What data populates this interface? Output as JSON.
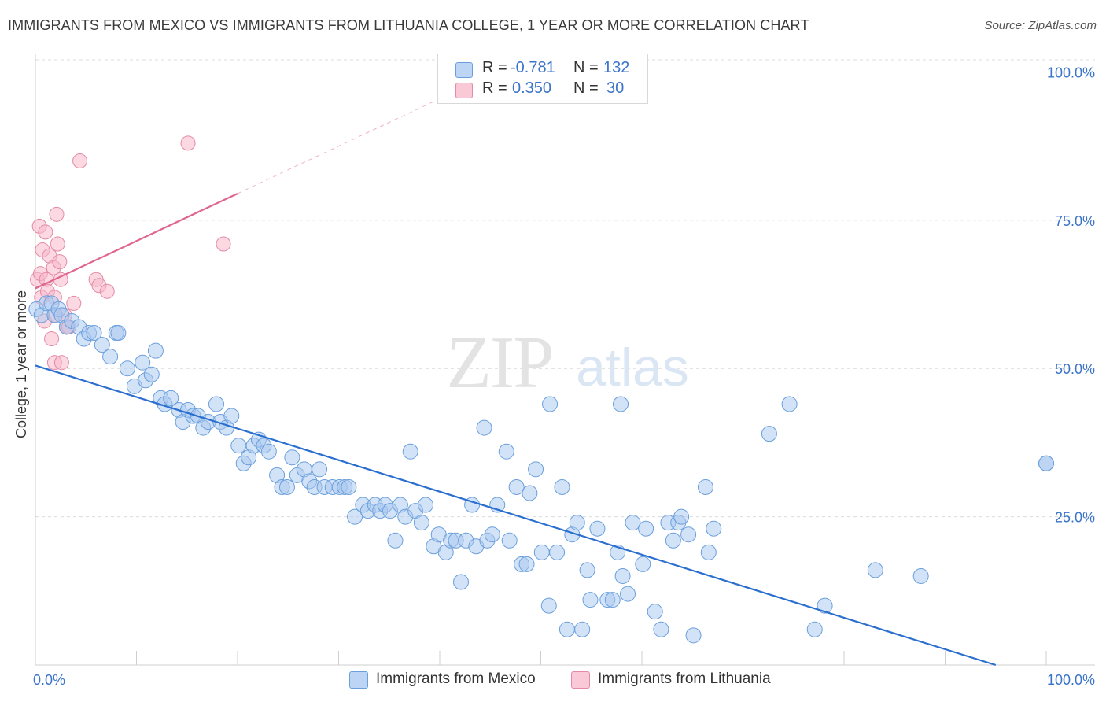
{
  "title": "IMMIGRANTS FROM MEXICO VS IMMIGRANTS FROM LITHUANIA COLLEGE, 1 YEAR OR MORE CORRELATION CHART",
  "source": "Source: ZipAtlas.com",
  "watermark": {
    "zip": "ZIP",
    "atlas": "atlas"
  },
  "legend": [
    {
      "r_label": "R =",
      "r_value": "-0.781",
      "n_label": "N =",
      "n_value": "132"
    },
    {
      "r_label": "R =",
      "r_value": "0.350",
      "n_label": "N =",
      "n_value": "30"
    }
  ],
  "colors": {
    "blue_fill": "#a8c8f0",
    "blue_stroke": "#6a9fdc",
    "blue_line": "#2a6fcf",
    "pink_fill": "#f7b8cb",
    "pink_stroke": "#e48aa6",
    "pink_line": "#e0668f",
    "axis_text": "#3b74c9",
    "grid": "#dcdcdc"
  },
  "chart_data": {
    "type": "scatter",
    "title": "IMMIGRANTS FROM MEXICO VS IMMIGRANTS FROM LITHUANIA COLLEGE, 1 YEAR OR MORE CORRELATION CHART",
    "xlabel": "",
    "ylabel": "College, 1 year or more",
    "xlim": [
      0,
      100
    ],
    "ylim": [
      0,
      100
    ],
    "x_tick_labels": [
      "0.0%",
      "100.0%"
    ],
    "y_tick_labels": [
      "25.0%",
      "50.0%",
      "75.0%",
      "100.0%"
    ],
    "y_ticks": [
      25,
      50,
      75,
      100
    ],
    "grid": true,
    "legend_placement": "top-center",
    "series": [
      {
        "name": "Immigrants from Mexico",
        "R": -0.781,
        "N": 132,
        "trend": {
          "x": [
            0,
            95
          ],
          "y": [
            50.5,
            0
          ]
        },
        "points": [
          [
            0.1,
            60
          ],
          [
            0.6,
            59
          ],
          [
            1.1,
            61
          ],
          [
            1.6,
            61
          ],
          [
            1.9,
            59
          ],
          [
            2.3,
            60
          ],
          [
            2.6,
            59
          ],
          [
            3.1,
            57
          ],
          [
            3.6,
            58
          ],
          [
            4.3,
            57
          ],
          [
            4.8,
            55
          ],
          [
            5.3,
            56
          ],
          [
            5.8,
            56
          ],
          [
            6.6,
            54
          ],
          [
            7.4,
            52
          ],
          [
            8,
            56
          ],
          [
            8.2,
            56
          ],
          [
            9.1,
            50
          ],
          [
            9.8,
            47
          ],
          [
            10.6,
            51
          ],
          [
            10.9,
            48
          ],
          [
            11.5,
            49
          ],
          [
            11.9,
            53
          ],
          [
            12.4,
            45
          ],
          [
            12.8,
            44
          ],
          [
            13.4,
            45
          ],
          [
            14.2,
            43
          ],
          [
            14.6,
            41
          ],
          [
            15.1,
            43
          ],
          [
            15.6,
            42
          ],
          [
            16.1,
            42
          ],
          [
            16.6,
            40
          ],
          [
            17.1,
            41
          ],
          [
            17.9,
            44
          ],
          [
            18.3,
            41
          ],
          [
            18.9,
            40
          ],
          [
            19.4,
            42
          ],
          [
            20.1,
            37
          ],
          [
            20.6,
            34
          ],
          [
            21.1,
            35
          ],
          [
            21.6,
            37
          ],
          [
            22.1,
            38
          ],
          [
            22.6,
            37
          ],
          [
            23.1,
            36
          ],
          [
            23.9,
            32
          ],
          [
            24.4,
            30
          ],
          [
            24.9,
            30
          ],
          [
            25.4,
            35
          ],
          [
            25.9,
            32
          ],
          [
            26.6,
            33
          ],
          [
            27.1,
            31
          ],
          [
            27.6,
            30
          ],
          [
            28.1,
            33
          ],
          [
            28.6,
            30
          ],
          [
            29.4,
            30
          ],
          [
            30.1,
            30
          ],
          [
            30.6,
            30
          ],
          [
            31,
            30
          ],
          [
            31.6,
            25
          ],
          [
            32.4,
            27
          ],
          [
            32.9,
            26
          ],
          [
            33.6,
            27
          ],
          [
            34.1,
            26
          ],
          [
            34.6,
            27
          ],
          [
            35.1,
            26
          ],
          [
            35.6,
            21
          ],
          [
            36.1,
            27
          ],
          [
            36.6,
            25
          ],
          [
            37.1,
            36
          ],
          [
            37.6,
            26
          ],
          [
            38.2,
            24
          ],
          [
            38.6,
            27
          ],
          [
            39.4,
            20
          ],
          [
            39.9,
            22
          ],
          [
            40.6,
            19
          ],
          [
            41.1,
            21
          ],
          [
            41.6,
            21
          ],
          [
            42.1,
            14
          ],
          [
            42.6,
            21
          ],
          [
            43.2,
            27
          ],
          [
            43.6,
            20
          ],
          [
            44.4,
            40
          ],
          [
            44.7,
            21
          ],
          [
            45.2,
            22
          ],
          [
            45.7,
            27
          ],
          [
            46.6,
            36
          ],
          [
            46.9,
            21
          ],
          [
            47.6,
            30
          ],
          [
            48.1,
            17
          ],
          [
            48.6,
            17
          ],
          [
            48.9,
            29
          ],
          [
            49.5,
            33
          ],
          [
            50.1,
            19
          ],
          [
            50.8,
            10
          ],
          [
            50.9,
            44
          ],
          [
            51.6,
            19
          ],
          [
            52.1,
            30
          ],
          [
            52.6,
            6
          ],
          [
            53.1,
            22
          ],
          [
            53.6,
            24
          ],
          [
            54.1,
            6
          ],
          [
            54.6,
            16
          ],
          [
            54.9,
            11
          ],
          [
            55.6,
            23
          ],
          [
            56.6,
            11
          ],
          [
            57.1,
            11
          ],
          [
            57.6,
            19
          ],
          [
            57.9,
            44
          ],
          [
            58.1,
            15
          ],
          [
            58.6,
            12
          ],
          [
            59.1,
            24
          ],
          [
            60.1,
            17
          ],
          [
            61.3,
            9
          ],
          [
            61.9,
            6
          ],
          [
            62.6,
            24
          ],
          [
            63.1,
            21
          ],
          [
            63.6,
            24
          ],
          [
            63.9,
            25
          ],
          [
            64.6,
            22
          ],
          [
            65.1,
            5
          ],
          [
            66.3,
            30
          ],
          [
            66.6,
            19
          ],
          [
            67.1,
            23
          ],
          [
            72.6,
            39
          ],
          [
            74.6,
            44
          ],
          [
            77.1,
            6
          ],
          [
            78.1,
            10
          ],
          [
            83.1,
            16
          ],
          [
            87.6,
            15
          ],
          [
            100,
            34
          ],
          [
            100,
            34
          ],
          [
            60.4,
            23
          ]
        ]
      },
      {
        "name": "Immigrants from Lithuania",
        "R": 0.35,
        "N": 30,
        "trend": {
          "x": [
            0,
            20
          ],
          "y": [
            63.5,
            79.5
          ]
        },
        "points": [
          [
            0.2,
            65
          ],
          [
            0.4,
            74
          ],
          [
            0.5,
            66
          ],
          [
            0.6,
            62
          ],
          [
            0.7,
            70
          ],
          [
            0.9,
            58
          ],
          [
            1.0,
            73
          ],
          [
            1.1,
            65
          ],
          [
            1.2,
            63
          ],
          [
            1.4,
            69
          ],
          [
            1.6,
            55
          ],
          [
            1.8,
            67
          ],
          [
            1.9,
            62
          ],
          [
            1.9,
            51
          ],
          [
            2.0,
            59
          ],
          [
            2.1,
            76
          ],
          [
            2.2,
            71
          ],
          [
            2.4,
            68
          ],
          [
            2.5,
            65
          ],
          [
            2.6,
            51
          ],
          [
            2.9,
            59
          ],
          [
            3.1,
            57
          ],
          [
            3.3,
            57
          ],
          [
            3.8,
            61
          ],
          [
            4.4,
            85
          ],
          [
            6.0,
            65
          ],
          [
            6.3,
            64
          ],
          [
            7.1,
            63
          ],
          [
            15.1,
            88
          ],
          [
            18.6,
            71
          ]
        ]
      }
    ]
  }
}
